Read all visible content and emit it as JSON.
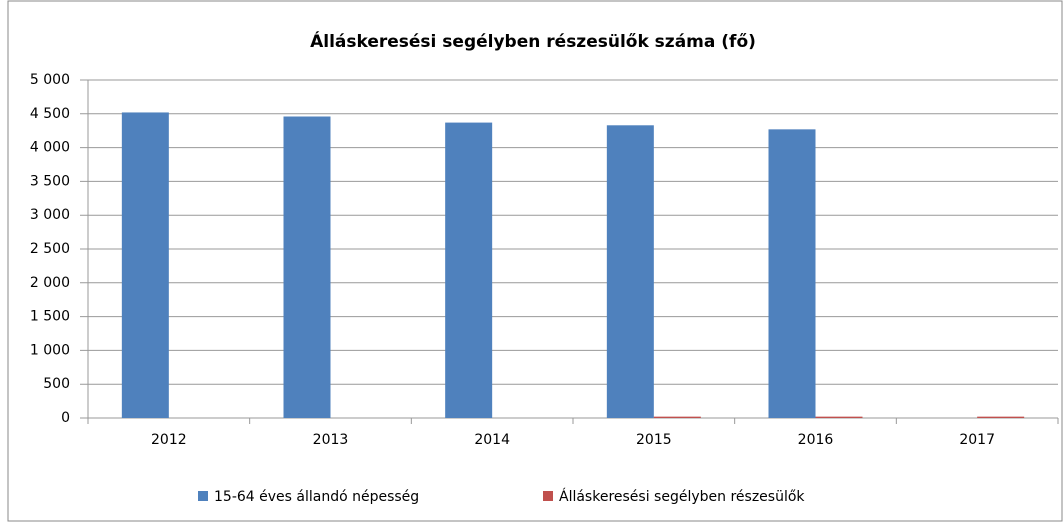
{
  "chart_data": {
    "type": "bar",
    "title": "Álláskeresési segélyben részesülők száma (fő)",
    "categories": [
      "2012",
      "2013",
      "2014",
      "2015",
      "2016",
      "2017"
    ],
    "series": [
      {
        "name": "15-64 éves állandó népesség",
        "color": "#4f81bd",
        "values": [
          4520,
          4460,
          4370,
          4330,
          4270,
          null
        ]
      },
      {
        "name": "Álláskeresési segélyben részesülők",
        "color": "#c0504d",
        "values": [
          0,
          0,
          0,
          20,
          20,
          20
        ]
      }
    ],
    "ylim": [
      0,
      5000
    ],
    "yticks": [
      0,
      500,
      {
        "value": 1000,
        "label": "1 000"
      },
      {
        "value": 1500,
        "label": "1 500"
      },
      {
        "value": 2000,
        "label": "2 000"
      },
      {
        "value": 2500,
        "label": "2 500"
      },
      {
        "value": 3000,
        "label": "3 000"
      },
      {
        "value": 3500,
        "label": "3 500"
      },
      {
        "value": 4000,
        "label": "4 000"
      },
      {
        "value": 4500,
        "label": "4 500"
      },
      {
        "value": 5000,
        "label": "5 000"
      }
    ],
    "grid": true,
    "legend": "bottom"
  }
}
